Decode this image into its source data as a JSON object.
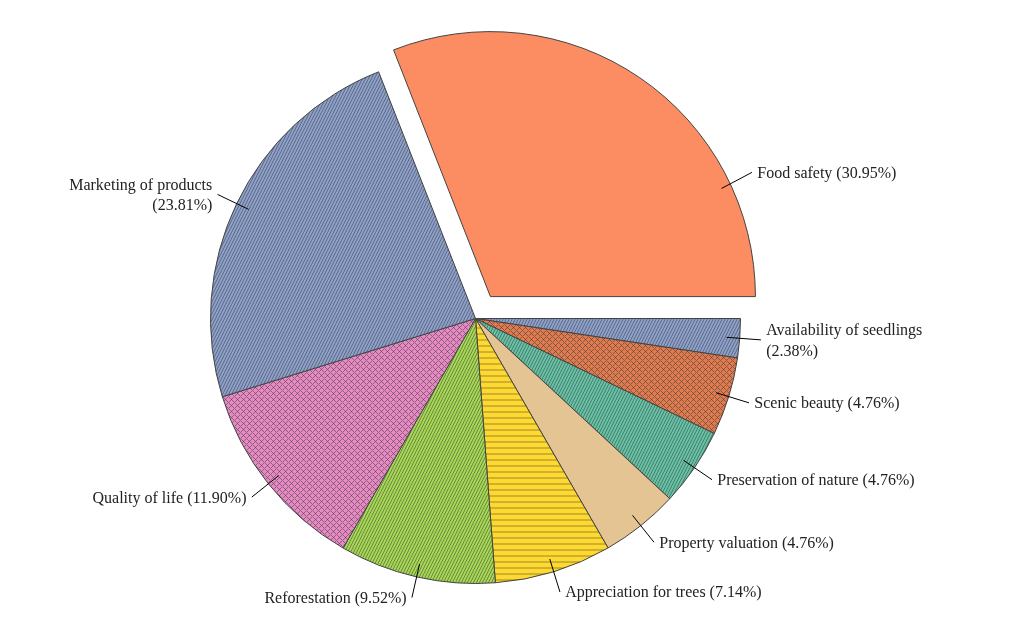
{
  "chart_data": {
    "type": "pie",
    "categories": [
      "Food safety",
      "Availability of seedlings",
      "Scenic beauty",
      "Preservation of nature",
      "Property valuation",
      "Appreciation for trees",
      "Reforestation",
      "Quality of life",
      "Marketing of products"
    ],
    "values": [
      30.95,
      2.38,
      4.76,
      4.76,
      4.76,
      7.14,
      9.52,
      11.9,
      23.81
    ],
    "colors": [
      "#fc8d62",
      "#8da0cb",
      "#e07b4f",
      "#66c2a5",
      "#e5c494",
      "#ffd92f",
      "#a6d854",
      "#e78ac3",
      "#8da0cb"
    ],
    "value_labels": [
      "(30.95%)",
      "(2.38%)",
      "(4.76%)",
      "(4.76%)",
      "(4.76%)",
      "(7.14%)",
      "(9.52%)",
      "(11.90%)",
      "(23.81%)"
    ]
  }
}
